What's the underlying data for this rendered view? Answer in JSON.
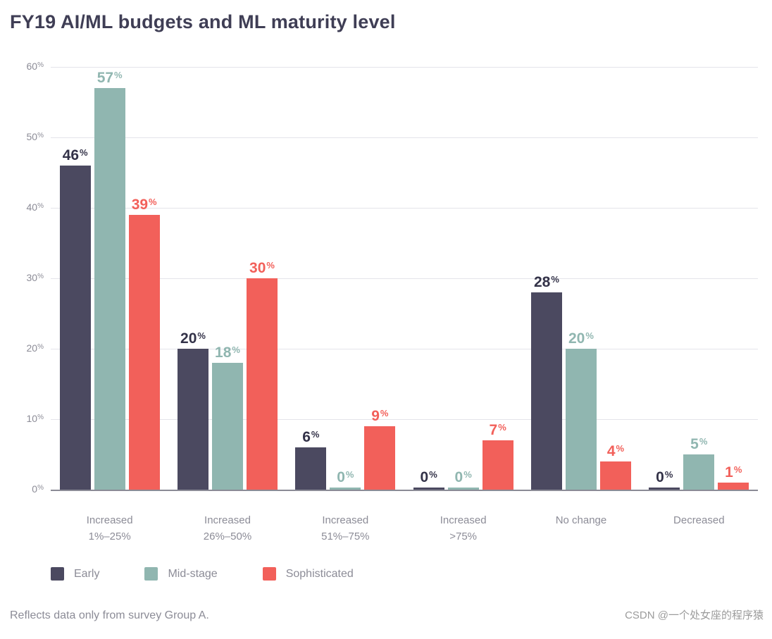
{
  "chart_data": {
    "type": "bar",
    "title": "FY19 AI/ML budgets and ML maturity level",
    "categories": [
      "Increased\n1%–25%",
      "Increased\n26%–50%",
      "Increased\n51%–75%",
      "Increased\n>75%",
      "No change",
      "Decreased"
    ],
    "series": [
      {
        "name": "Early",
        "color": "#4b4960",
        "label_color": "#333248",
        "values": [
          46,
          20,
          6,
          0,
          28,
          0
        ]
      },
      {
        "name": "Mid-stage",
        "color": "#90b6b0",
        "label_color": "#90b6b0",
        "values": [
          57,
          18,
          0,
          0,
          20,
          5
        ]
      },
      {
        "name": "Sophisticated",
        "color": "#f2605a",
        "label_color": "#f2605a",
        "values": [
          39,
          30,
          9,
          7,
          4,
          1
        ]
      }
    ],
    "ylim": [
      0,
      60
    ],
    "yticks": [
      0,
      10,
      20,
      30,
      40,
      50,
      60
    ],
    "ytick_suffix": "%",
    "value_suffix": "%",
    "grid": true,
    "legend_position": "bottom"
  },
  "footnote": "Reflects data only from survey Group A.",
  "watermark": "CSDN @一个处女座的程序猿"
}
